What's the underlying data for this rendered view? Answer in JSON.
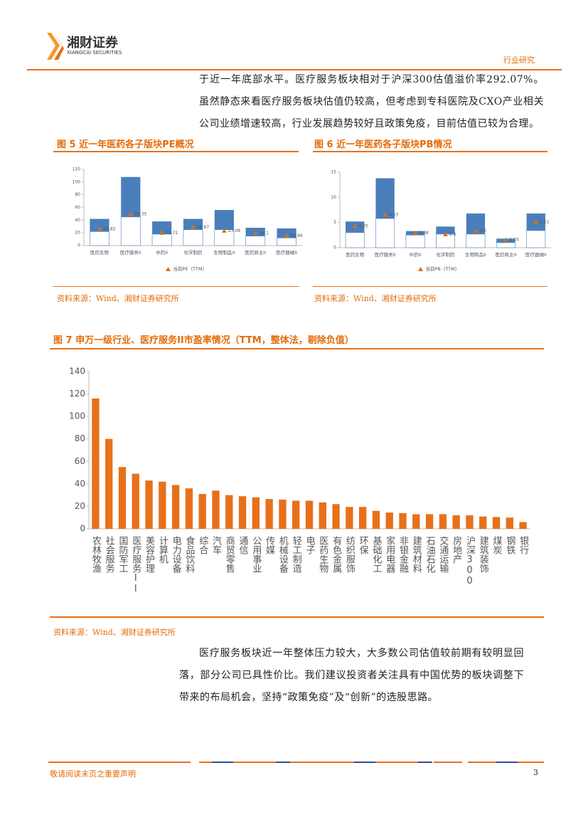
{
  "header": {
    "brand": "湘财证券",
    "brand_en": "XIANGCAI SECURITIES",
    "section": "行业研究"
  },
  "paragraphs": [
    "于近一年底部水平。医疗服务板块相对于沪深300估值溢价率292.07%。虽然静态来看医疗服务板块估值仍较高，但考虑到专科医院及CXO产业相关公司业绩增速较高，行业发展趋势较好且政策免疫，目前估值已较为合理。",
    "医疗服务板块近一年整体压力较大，大多数公司估值较前期有较明显回落，部分公司已具性价比。我们建议投资者关注具有中国优势的板块调整下带来的布局机会，坚持“政策免疫”及“创新”的选股思路。"
  ],
  "chart_data": [
    {
      "type": "bar",
      "title": "图 5 近一年医药各子版块PE概况",
      "source": "资料来源：Wind、湘财证券研究所",
      "categories": [
        "医药生物",
        "医疗服务II",
        "中药II",
        "化学制药",
        "生物制品II",
        "医药商业II",
        "医疗器械II"
      ],
      "series": [
        {
          "color": "#4a7ebb",
          "values": [
            42,
            108,
            38,
            42,
            56,
            28,
            27
          ]
        },
        {
          "color": "#ffffff",
          "values": [
            22,
            45,
            18,
            25,
            25,
            15,
            12
          ]
        },
        {
          "name": "当前PE（TTM）",
          "color": "#e46c0a",
          "marker": "triangle",
          "values": [
            25.82,
            49.35,
            19.72,
            28.87,
            23.08,
            19.1,
            14.96
          ]
        }
      ],
      "ylim": [
        0,
        120
      ],
      "yticks": [
        0,
        20,
        40,
        60,
        80,
        100,
        120
      ]
    },
    {
      "type": "bar",
      "title": "图 6 近一年医药各子版块PB情况",
      "source": "资料来源：Wind、湘财证券研究所",
      "categories": [
        "医药生物",
        "医疗服务II",
        "中药II",
        "化学制药",
        "生物制品II",
        "医药商业II",
        "医疗器械II"
      ],
      "series": [
        {
          "color": "#4a7ebb",
          "values": [
            5.2,
            13.8,
            3.3,
            4.2,
            6.8,
            1.8,
            6.8
          ]
        },
        {
          "color": "#ffffff",
          "values": [
            3,
            5.8,
            2.5,
            2.7,
            2.7,
            1,
            3.4
          ]
        },
        {
          "name": "当前PB（TTM）",
          "color": "#e46c0a",
          "marker": "triangle",
          "values": [
            4.25,
            6.53,
            2.88,
            2.6,
            3.3,
            1.55,
            5.11
          ]
        }
      ],
      "ylim": [
        0,
        15
      ],
      "yticks": [
        0,
        5,
        10,
        15
      ]
    },
    {
      "type": "bar",
      "title": "图 7 申万一级行业、医疗服务II市盈率情况（TTM，整体法，剔除负值）",
      "source": "资料来源：Wind、湘财证券研究所",
      "categories": [
        "农林牧渔",
        "社会服务",
        "国防军工",
        "医疗服务II",
        "美容护理",
        "计算机",
        "电力设备",
        "食品饮料",
        "综合",
        "汽车",
        "商贸零售",
        "通信",
        "公用事业",
        "传媒",
        "机械设备",
        "轻工制造",
        "电子",
        "医药生物",
        "有色金属",
        "纺织服饰",
        "环保",
        "基础化工",
        "家用电器",
        "非银金融",
        "建筑材料",
        "石油石化",
        "交通运输",
        "房地产",
        "沪深300",
        "建筑装饰",
        "煤炭",
        "钢铁",
        "银行"
      ],
      "series": [
        {
          "color": "#e8701a",
          "values": [
            116,
            80,
            55,
            49,
            43,
            42,
            39,
            36,
            31,
            34,
            30,
            29,
            28,
            26.5,
            26,
            25,
            25,
            23.5,
            22,
            19.5,
            19.5,
            16,
            14.5,
            14,
            13,
            13,
            13,
            12,
            12,
            11,
            10.5,
            10,
            6
          ]
        }
      ],
      "ylim": [
        0,
        140
      ],
      "yticks": [
        0,
        20,
        40,
        60,
        80,
        100,
        120,
        140
      ]
    }
  ],
  "footer": {
    "notice": "敬请阅读末页之重要声明",
    "page": "3"
  }
}
